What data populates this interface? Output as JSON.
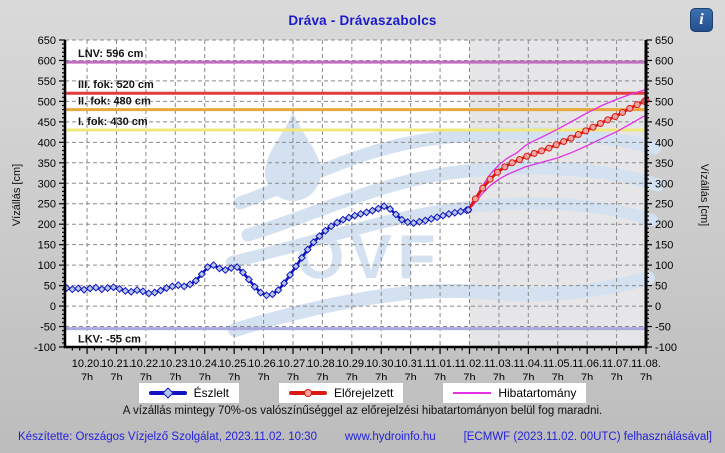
{
  "title": "Dráva - Drávaszabolcs",
  "info_icon_glyph": "i",
  "watermark": {
    "text": "OVF",
    "color": "#d3e1f1"
  },
  "note": "A vízállás mintegy 70%-os valószínűséggel az előrejelzési hibatartományon belül fog maradni.",
  "footer": {
    "left": "Készítette: Országos Vízjelző Szolgálat, 2023.11.02. 10:30",
    "center": "www.hydroinfo.hu",
    "right": "[ECMWF (2023.11.02. 00UTC) felhasználásával]"
  },
  "legend": {
    "items": [
      {
        "label": "Észlelt",
        "color": "#1112c0",
        "marker": "diamond"
      },
      {
        "label": "Előrejelzett",
        "color": "#da1a10",
        "marker": "circle"
      },
      {
        "label": "Hibatartomány",
        "color": "#e332e3",
        "marker": "none"
      }
    ]
  },
  "chart_data": {
    "type": "line",
    "title": "Dráva - Drávaszabolcs",
    "y_axis": {
      "label_left": "Vízállás [cm]",
      "label_right": "Vízállás [cm]",
      "min": -100,
      "max": 650,
      "tick_step": 50,
      "minor_step": 10
    },
    "x_axis": {
      "tick_labels": [
        "10.20.",
        "10.21.",
        "10.22.",
        "10.23.",
        "10.24.",
        "10.25.",
        "10.26.",
        "10.27.",
        "10.28.",
        "10.29.",
        "10.30.",
        "10.31.",
        "11.01.",
        "11.02.",
        "11.03.",
        "11.04.",
        "11.05.",
        "11.06.",
        "11.07.",
        "11.08."
      ],
      "tick_hour": "7h",
      "domain_days": [
        -0.75,
        19
      ],
      "minor_step_days": 0.25
    },
    "grid": true,
    "forecast_region_start_day": 13,
    "forecast_region_color": "#e6e6e8",
    "reference_lines": [
      {
        "key": "lnv",
        "label": "LNV: 596 cm",
        "value": 596,
        "color": "#c06ec0",
        "label_position": "above"
      },
      {
        "key": "fok3",
        "label": "III. fok: 520 cm",
        "value": 520,
        "color": "#e13b3b",
        "label_position": "above"
      },
      {
        "key": "fok2",
        "label": "II. fok: 480 cm",
        "value": 480,
        "color": "#e9a83e",
        "label_position": "above"
      },
      {
        "key": "fok1",
        "label": "I. fok: 430 cm",
        "value": 430,
        "color": "#f0e87a",
        "label_position": "above"
      },
      {
        "key": "lkv",
        "label": "LKV: -55 cm",
        "value": -55,
        "color": "#a9a9e0",
        "label_position": "below"
      }
    ],
    "series": [
      {
        "key": "observed",
        "name": "Észlelt",
        "color": "#1112c0",
        "width": 2.6,
        "marker": "diamond",
        "marker_fill": "#b5c9e6",
        "points": [
          [
            -0.7,
            44
          ],
          [
            -0.5,
            41
          ],
          [
            -0.3,
            43
          ],
          [
            -0.1,
            40
          ],
          [
            0.1,
            43
          ],
          [
            0.3,
            45
          ],
          [
            0.5,
            41
          ],
          [
            0.7,
            44
          ],
          [
            0.9,
            46
          ],
          [
            1.1,
            42
          ],
          [
            1.3,
            37
          ],
          [
            1.5,
            35
          ],
          [
            1.7,
            39
          ],
          [
            1.9,
            36
          ],
          [
            2.1,
            31
          ],
          [
            2.3,
            33
          ],
          [
            2.5,
            38
          ],
          [
            2.7,
            44
          ],
          [
            2.9,
            48
          ],
          [
            3.1,
            51
          ],
          [
            3.3,
            48
          ],
          [
            3.5,
            53
          ],
          [
            3.7,
            62
          ],
          [
            3.9,
            78
          ],
          [
            4.1,
            95
          ],
          [
            4.3,
            100
          ],
          [
            4.5,
            92
          ],
          [
            4.7,
            88
          ],
          [
            4.9,
            93
          ],
          [
            5.1,
            95
          ],
          [
            5.3,
            82
          ],
          [
            5.5,
            65
          ],
          [
            5.7,
            47
          ],
          [
            5.9,
            33
          ],
          [
            6.1,
            26
          ],
          [
            6.3,
            29
          ],
          [
            6.5,
            39
          ],
          [
            6.7,
            56
          ],
          [
            6.9,
            76
          ],
          [
            7.1,
            97
          ],
          [
            7.3,
            118
          ],
          [
            7.5,
            138
          ],
          [
            7.7,
            156
          ],
          [
            7.9,
            171
          ],
          [
            8.1,
            184
          ],
          [
            8.3,
            195
          ],
          [
            8.5,
            204
          ],
          [
            8.7,
            211
          ],
          [
            8.9,
            216
          ],
          [
            9.1,
            221
          ],
          [
            9.3,
            225
          ],
          [
            9.5,
            229
          ],
          [
            9.7,
            233
          ],
          [
            9.9,
            238
          ],
          [
            10.1,
            244
          ],
          [
            10.3,
            237
          ],
          [
            10.5,
            224
          ],
          [
            10.7,
            211
          ],
          [
            10.9,
            205
          ],
          [
            11.1,
            203
          ],
          [
            11.3,
            206
          ],
          [
            11.5,
            209
          ],
          [
            11.7,
            213
          ],
          [
            11.9,
            217
          ],
          [
            12.1,
            221
          ],
          [
            12.3,
            225
          ],
          [
            12.5,
            228
          ],
          [
            12.7,
            231
          ],
          [
            12.9,
            234
          ],
          [
            12.96,
            235
          ]
        ]
      },
      {
        "key": "forecast",
        "name": "Előrejelzett",
        "color": "#da1a10",
        "width": 2.8,
        "marker": "circle",
        "marker_fill": "#f0a3a3",
        "points": [
          [
            12.96,
            235
          ],
          [
            13.2,
            262
          ],
          [
            13.45,
            288
          ],
          [
            13.7,
            310
          ],
          [
            13.95,
            327
          ],
          [
            14.2,
            340
          ],
          [
            14.45,
            350
          ],
          [
            14.7,
            358
          ],
          [
            14.95,
            366
          ],
          [
            15.2,
            373
          ],
          [
            15.45,
            379
          ],
          [
            15.7,
            386
          ],
          [
            15.95,
            394
          ],
          [
            16.2,
            402
          ],
          [
            16.45,
            410
          ],
          [
            16.7,
            419
          ],
          [
            16.95,
            428
          ],
          [
            17.2,
            437
          ],
          [
            17.45,
            446
          ],
          [
            17.7,
            455
          ],
          [
            17.95,
            463
          ],
          [
            18.2,
            473
          ],
          [
            18.45,
            483
          ],
          [
            18.7,
            492
          ],
          [
            18.95,
            500
          ],
          [
            19,
            503
          ]
        ]
      },
      {
        "key": "band_upper",
        "name": "Hibatartomány (felső)",
        "color": "#e332e3",
        "width": 1.3,
        "marker": "none",
        "points": [
          [
            13.1,
            252
          ],
          [
            13.4,
            290
          ],
          [
            13.7,
            322
          ],
          [
            14,
            345
          ],
          [
            14.3,
            362
          ],
          [
            14.6,
            374
          ],
          [
            14.9,
            392
          ],
          [
            15.2,
            404
          ],
          [
            15.5,
            414
          ],
          [
            16,
            432
          ],
          [
            16.5,
            452
          ],
          [
            17,
            472
          ],
          [
            17.5,
            490
          ],
          [
            18,
            505
          ],
          [
            18.5,
            518
          ],
          [
            19,
            529
          ]
        ]
      },
      {
        "key": "band_lower",
        "name": "Hibatartomány (alsó)",
        "color": "#e332e3",
        "width": 1.3,
        "marker": "none",
        "points": [
          [
            13.1,
            244
          ],
          [
            13.4,
            272
          ],
          [
            13.7,
            294
          ],
          [
            14,
            310
          ],
          [
            14.3,
            322
          ],
          [
            14.6,
            331
          ],
          [
            14.9,
            340
          ],
          [
            15.2,
            346
          ],
          [
            15.5,
            352
          ],
          [
            16,
            362
          ],
          [
            16.5,
            376
          ],
          [
            17,
            392
          ],
          [
            17.5,
            409
          ],
          [
            18,
            426
          ],
          [
            18.5,
            446
          ],
          [
            19,
            467
          ]
        ]
      }
    ]
  }
}
